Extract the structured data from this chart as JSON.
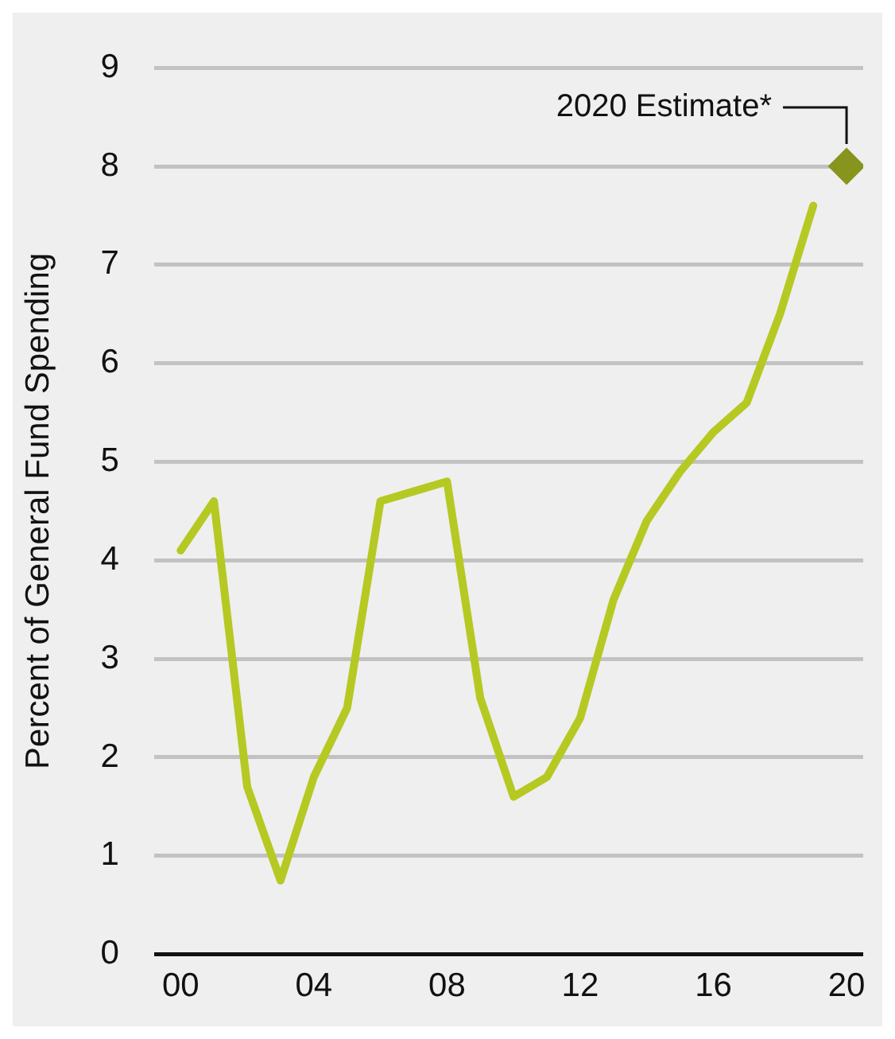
{
  "chart_data": {
    "type": "line",
    "ylabel": "Percent of General Fund Spending",
    "x": [
      2000,
      2001,
      2002,
      2003,
      2004,
      2005,
      2006,
      2007,
      2008,
      2009,
      2010,
      2011,
      2012,
      2013,
      2014,
      2015,
      2016,
      2017,
      2018,
      2019
    ],
    "series": [
      {
        "color": "#b5c922",
        "marker": "none",
        "values": [
          4.1,
          4.6,
          1.7,
          0.75,
          1.8,
          2.5,
          4.6,
          4.7,
          4.8,
          2.6,
          1.6,
          1.8,
          2.4,
          3.6,
          4.4,
          4.9,
          5.3,
          5.6,
          6.5,
          7.6
        ]
      },
      {
        "type": "scatter",
        "color": "#87951e",
        "marker": "diamond",
        "x": [
          2020
        ],
        "values": [
          8
        ]
      }
    ],
    "xlim": [
      1999.2,
      2020.5
    ],
    "xticks": [
      {
        "value": 2000,
        "label": "00"
      },
      {
        "value": 2004,
        "label": "04"
      },
      {
        "value": 2008,
        "label": "08"
      },
      {
        "value": 2012,
        "label": "12"
      },
      {
        "value": 2016,
        "label": "16"
      },
      {
        "value": 2020,
        "label": "20"
      }
    ],
    "ylim": [
      0,
      9
    ],
    "yticks": [
      0,
      1,
      2,
      3,
      4,
      5,
      6,
      7,
      8,
      9
    ],
    "grid": "y",
    "legend": false,
    "line_style": "solid",
    "annotations": [
      {
        "text": "2020 Estimate*",
        "x": 2020,
        "y": 8
      }
    ]
  }
}
